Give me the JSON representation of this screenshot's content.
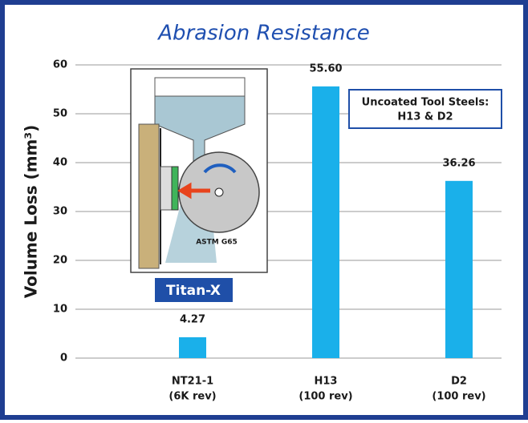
{
  "chart_data": {
    "type": "bar",
    "title": "Abrasion Resistance",
    "y_label": "Volume Loss (mm³)",
    "categories": [
      "NT21-1",
      "H13",
      "D2"
    ],
    "category_sublabels": [
      "(6K rev)",
      "(100 rev)",
      "(100 rev)"
    ],
    "values": [
      4.27,
      55.6,
      36.26
    ],
    "value_labels": [
      "4.27",
      "55.60",
      "36.26"
    ],
    "color": "#1ab0ea",
    "ylim": [
      0,
      60
    ],
    "yticks": [
      0,
      10,
      20,
      30,
      40,
      50,
      60
    ],
    "grid": true,
    "annotations": {
      "note_line1": "Uncoated Tool Steels:",
      "note_line2": "H13 & D2",
      "inset_label": "Titan-X",
      "inset_caption": "ASTM G65"
    }
  }
}
